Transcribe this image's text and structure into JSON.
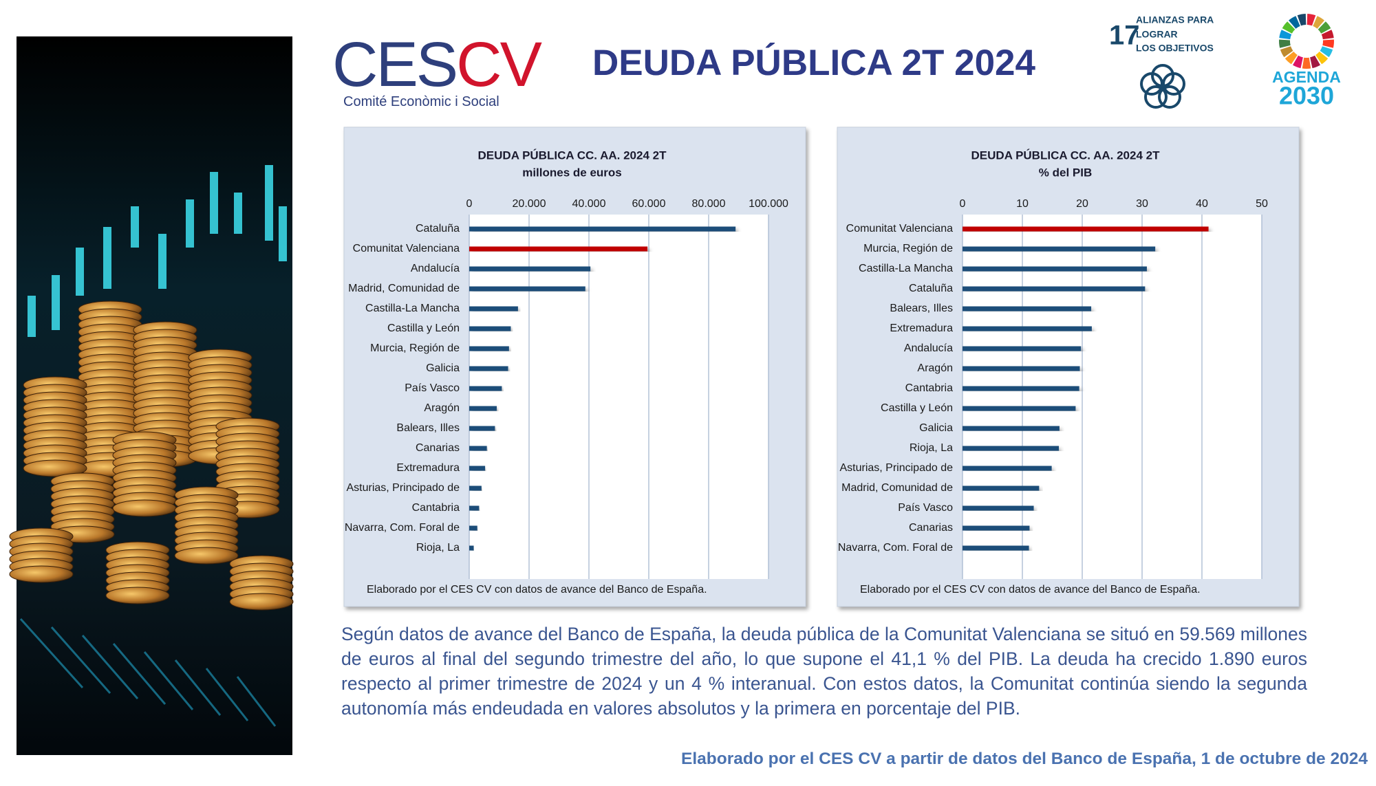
{
  "header": {
    "logo_left": "CES",
    "logo_right": "CV",
    "logo_subtitle": "Comité Econòmic i Social",
    "title": "DEUDA PÚBLICA 2T 2024",
    "sdg_number": "17",
    "sdg_lines": [
      "ALIANZAS PARA",
      "LOGRAR",
      "LOS OBJETIVOS"
    ],
    "agenda_word": "AGENDA",
    "agenda_year": "2030"
  },
  "chart_data": [
    {
      "type": "bar",
      "orientation": "horizontal",
      "title": "DEUDA PÚBLICA CC. AA. 2024 2T",
      "subtitle": "millones de euros",
      "categories": [
        "Cataluña",
        "Comunitat Valenciana",
        "Andalucía",
        "Madrid, Comunidad de",
        "Castilla-La Mancha",
        "Castilla y León",
        "Murcia, Región de",
        "Galicia",
        "País Vasco",
        "Aragón",
        "Balears, Illes",
        "Canarias",
        "Extremadura",
        "Asturias, Principado de",
        "Cantabria",
        "Navarra, Com. Foral de",
        "Rioja, La"
      ],
      "values": [
        89000,
        59569,
        40500,
        38800,
        16300,
        13900,
        13300,
        13000,
        10900,
        9200,
        8600,
        5900,
        5300,
        4100,
        3300,
        2700,
        1500
      ],
      "colors": [
        "#1f4e79",
        "#c00000",
        "#1f4e79",
        "#1f4e79",
        "#1f4e79",
        "#1f4e79",
        "#1f4e79",
        "#1f4e79",
        "#1f4e79",
        "#1f4e79",
        "#1f4e79",
        "#1f4e79",
        "#1f4e79",
        "#1f4e79",
        "#1f4e79",
        "#1f4e79",
        "#1f4e79"
      ],
      "xlim": [
        0,
        100000
      ],
      "xticks": [
        0,
        {
          "value": 20000,
          "label": "20.000"
        },
        {
          "value": 40000,
          "label": "40.000"
        },
        {
          "value": 60000,
          "label": "60.000"
        },
        {
          "value": 80000,
          "label": "80.000"
        },
        {
          "value": 100000,
          "label": "100.000"
        }
      ],
      "grid": true,
      "note": "Elaborado por el CES CV con datos de avance del Banco de España."
    },
    {
      "type": "bar",
      "orientation": "horizontal",
      "title": "DEUDA PÚBLICA CC. AA. 2024 2T",
      "subtitle": "% del PIB",
      "categories": [
        "Comunitat Valenciana",
        "Murcia, Región de",
        "Castilla-La Mancha",
        "Cataluña",
        "Balears, Illes",
        "Extremadura",
        "Andalucía",
        "Aragón",
        "Cantabria",
        "Castilla y León",
        "Galicia",
        "Rioja, La",
        "Asturias, Principado de",
        "Madrid, Comunidad de",
        "País Vasco",
        "Canarias",
        "Navarra, Com. Foral de"
      ],
      "values": [
        41.1,
        32.2,
        30.8,
        30.5,
        21.5,
        21.6,
        19.8,
        19.6,
        19.5,
        18.9,
        16.2,
        16.1,
        14.9,
        12.8,
        11.9,
        11.2,
        11.1
      ],
      "colors": [
        "#c00000",
        "#1f4e79",
        "#1f4e79",
        "#1f4e79",
        "#1f4e79",
        "#1f4e79",
        "#1f4e79",
        "#1f4e79",
        "#1f4e79",
        "#1f4e79",
        "#1f4e79",
        "#1f4e79",
        "#1f4e79",
        "#1f4e79",
        "#1f4e79",
        "#1f4e79",
        "#1f4e79"
      ],
      "xlim": [
        0,
        50
      ],
      "xticks": [
        0,
        10,
        20,
        30,
        40,
        50
      ],
      "grid": true,
      "note": "Elaborado por el CES CV con datos de avance del Banco de España."
    }
  ],
  "body_text": "Según datos de avance del Banco de España, la deuda pública de la Comunitat Valenciana se situó en 59.569 millones de euros al final del segundo trimestre del año, lo que supone el 41,1 % del PIB. La deuda ha crecido 1.890 euros respecto al primer trimestre de 2024 y un 4 % interanual. Con estos datos, la Comunitat continúa siendo la segunda autonomía más endeudada en valores absolutos y la primera en porcentaje del PIB.",
  "footer": "Elaborado por el CES CV a partir de datos del Banco de España, 1 de octubre de 2024"
}
